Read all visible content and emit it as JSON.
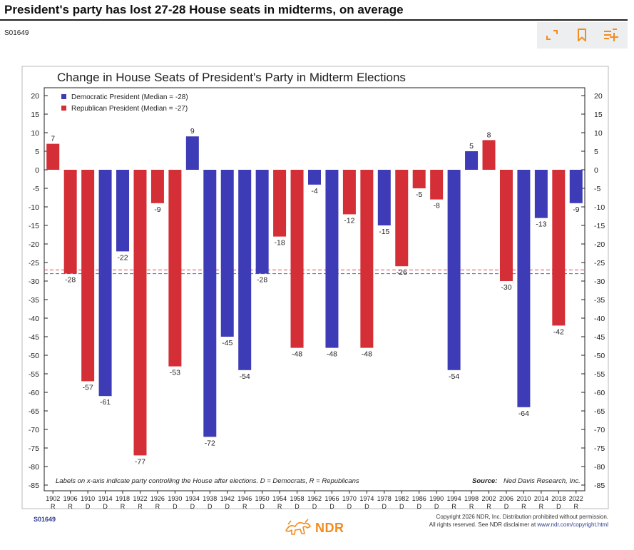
{
  "page": {
    "title": "President's party has lost 27-28 House seats in midterms, on average",
    "chart_id": "S01649"
  },
  "toolbar": {
    "expand_icon": "expand-icon",
    "bookmark_icon": "bookmark-icon",
    "add_list_icon": "playlist-add-icon"
  },
  "colors": {
    "democratic": "#3d3bb5",
    "republican": "#d42f36",
    "median_dem": "#5b5bd6",
    "median_rep": "#d94a55"
  },
  "chart_data": {
    "type": "bar",
    "title": "Change in House Seats of President's Party in Midterm Elections",
    "categories": [
      "1902",
      "1906",
      "1910",
      "1914",
      "1918",
      "1922",
      "1926",
      "1930",
      "1934",
      "1938",
      "1942",
      "1946",
      "1950",
      "1954",
      "1958",
      "1962",
      "1966",
      "1970",
      "1974",
      "1978",
      "1982",
      "1986",
      "1990",
      "1994",
      "1998",
      "2002",
      "2006",
      "2010",
      "2014",
      "2018",
      "2022"
    ],
    "house_control": [
      "R",
      "R",
      "D",
      "D",
      "R",
      "R",
      "R",
      "D",
      "D",
      "D",
      "D",
      "R",
      "D",
      "R",
      "D",
      "D",
      "D",
      "D",
      "D",
      "D",
      "D",
      "D",
      "D",
      "R",
      "R",
      "R",
      "D",
      "R",
      "R",
      "D",
      "R"
    ],
    "values": [
      7,
      -28,
      -57,
      -61,
      -22,
      -77,
      -9,
      -53,
      9,
      -72,
      -45,
      -54,
      -28,
      -18,
      -48,
      -4,
      -48,
      -12,
      -48,
      -15,
      -26,
      -5,
      -8,
      -54,
      5,
      8,
      -30,
      -64,
      -13,
      -42,
      -9
    ],
    "president_party": [
      "R",
      "R",
      "R",
      "D",
      "D",
      "R",
      "R",
      "R",
      "D",
      "D",
      "D",
      "D",
      "D",
      "R",
      "R",
      "D",
      "D",
      "R",
      "R",
      "D",
      "R",
      "R",
      "R",
      "D",
      "D",
      "R",
      "R",
      "D",
      "D",
      "R",
      "D"
    ],
    "legend": [
      {
        "party": "D",
        "label": "Democratic President (Median = -28)"
      },
      {
        "party": "R",
        "label": "Republican President (Median = -27)"
      }
    ],
    "medians": {
      "D": -28,
      "R": -27
    },
    "ylim": [
      -85,
      20
    ],
    "yticks": [
      20,
      15,
      10,
      5,
      0,
      -5,
      -10,
      -15,
      -20,
      -25,
      -30,
      -35,
      -40,
      -45,
      -50,
      -55,
      -60,
      -65,
      -70,
      -75,
      -80,
      -85
    ],
    "note": "Labels on x-axis indicate party controlling the House after elections. D = Democrats, R = Republicans",
    "source_label": "Source:",
    "source_text": "Ned Davis Research, Inc."
  },
  "footer": {
    "chart_id": "S01649",
    "logo_text": "NDR",
    "copyright_line1": "Copyright 2026 NDR, Inc. Distribution prohibited without permission.",
    "copyright_line2": "All rights reserved. See NDR disclaimer at ",
    "copyright_link": "www.ndr.com/copyright.html"
  }
}
